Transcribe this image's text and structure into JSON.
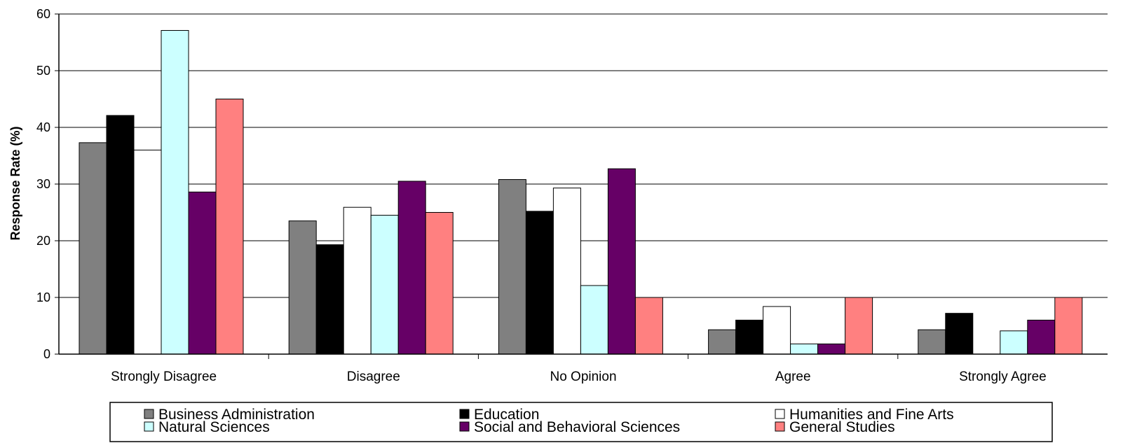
{
  "chart_data": {
    "type": "bar",
    "title": "",
    "xlabel": "",
    "ylabel": "Response Rate (%)",
    "ylim": [
      0,
      60
    ],
    "yticks": [
      0,
      10,
      20,
      30,
      40,
      50,
      60
    ],
    "grid": true,
    "legend_placement": "bottom",
    "categories": [
      "Strongly Disagree",
      "Disagree",
      "No Opinion",
      "Agree",
      "Strongly Agree"
    ],
    "series": [
      {
        "name": "Business Administration",
        "color": "#808080",
        "values": [
          37.3,
          23.5,
          30.8,
          4.3,
          4.3
        ]
      },
      {
        "name": "Education",
        "color": "#000000",
        "values": [
          42.1,
          19.3,
          25.2,
          6.0,
          7.2
        ]
      },
      {
        "name": "Humanities and Fine Arts",
        "color": "#ffffff",
        "values": [
          36.0,
          25.9,
          29.3,
          8.4,
          0
        ]
      },
      {
        "name": "Natural Sciences",
        "color": "#ccffff",
        "values": [
          57.1,
          24.5,
          12.1,
          1.8,
          4.1
        ]
      },
      {
        "name": "Social and Behavioral Sciences",
        "color": "#660066",
        "values": [
          28.6,
          30.5,
          32.7,
          1.8,
          6.0
        ]
      },
      {
        "name": "General Studies",
        "color": "#ff8080",
        "values": [
          45.0,
          25.0,
          10.0,
          10.0,
          10.0
        ]
      }
    ]
  }
}
